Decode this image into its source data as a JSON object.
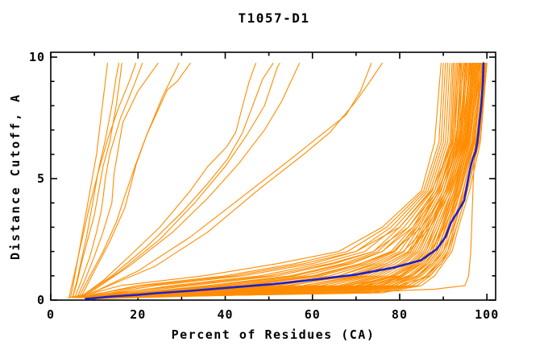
{
  "title": "T1057-D1",
  "colors": {
    "model_line": "#ff8c00",
    "highlight_line": "#2020c8",
    "frame": "#000000",
    "background": "#ffffff"
  },
  "chart_data": {
    "type": "line",
    "title": "T1057-D1",
    "xlabel": "Percent of Residues (CA)",
    "ylabel": "Distance Cutoff, A",
    "xlim": [
      0,
      102
    ],
    "ylim": [
      0,
      10.2
    ],
    "grid": false,
    "legend": "none",
    "x_major_ticks": [
      0,
      20,
      40,
      60,
      80,
      100
    ],
    "x_minor_ticks": [
      10,
      30,
      50,
      70,
      90
    ],
    "y_major_ticks": [
      0,
      5,
      10
    ],
    "y_minor_ticks": [
      1,
      2,
      3,
      4,
      6,
      7,
      8,
      9
    ],
    "highlight_curve": {
      "name": "highlighted-model",
      "points": [
        [
          8,
          0.05
        ],
        [
          14,
          0.15
        ],
        [
          20,
          0.22
        ],
        [
          24,
          0.28
        ],
        [
          32,
          0.38
        ],
        [
          40,
          0.5
        ],
        [
          51,
          0.66
        ],
        [
          60,
          0.83
        ],
        [
          70,
          1.05
        ],
        [
          79,
          1.35
        ],
        [
          85,
          1.65
        ],
        [
          88.5,
          2.1
        ],
        [
          90.5,
          2.6
        ],
        [
          91.8,
          3.2
        ],
        [
          93.5,
          3.7
        ],
        [
          94.8,
          4.1
        ],
        [
          95.4,
          4.7
        ],
        [
          95.8,
          5.1
        ],
        [
          96.4,
          5.6
        ],
        [
          96.8,
          5.85
        ],
        [
          97.4,
          6.1
        ],
        [
          97.8,
          6.5
        ],
        [
          98.1,
          7.0
        ],
        [
          98.4,
          7.5
        ],
        [
          98.7,
          8.0
        ],
        [
          98.9,
          8.5
        ],
        [
          99.1,
          9.0
        ],
        [
          99.2,
          9.75
        ]
      ]
    },
    "orange_outlier_curves": [
      [
        [
          4.5,
          0.1
        ],
        [
          5,
          0.5
        ],
        [
          5.5,
          1
        ],
        [
          6.5,
          2
        ],
        [
          7.5,
          3
        ],
        [
          8.5,
          4
        ],
        [
          9.5,
          5
        ],
        [
          10.5,
          6
        ],
        [
          11.5,
          7.5
        ],
        [
          12.5,
          9
        ],
        [
          13,
          9.75
        ]
      ],
      [
        [
          5,
          0.12
        ],
        [
          6,
          0.8
        ],
        [
          7.2,
          1.8
        ],
        [
          8.2,
          2.6
        ],
        [
          9,
          3.4
        ],
        [
          10,
          4.4
        ],
        [
          11,
          5.4
        ],
        [
          12.5,
          6.6
        ],
        [
          14,
          8
        ],
        [
          15,
          9.2
        ],
        [
          15.6,
          9.75
        ]
      ],
      [
        [
          5,
          0.1
        ],
        [
          6,
          0.7
        ],
        [
          7,
          1.5
        ],
        [
          8.5,
          2.5
        ],
        [
          10,
          3.5
        ],
        [
          11,
          4.5
        ],
        [
          12,
          5.5
        ],
        [
          13.5,
          6.5
        ],
        [
          15,
          8
        ],
        [
          16,
          9.3
        ],
        [
          16.3,
          9.75
        ]
      ],
      [
        [
          4.2,
          0.1
        ],
        [
          5.2,
          0.9
        ],
        [
          6.8,
          2.2
        ],
        [
          8.8,
          3.8
        ],
        [
          10.8,
          5.2
        ],
        [
          13,
          6.6
        ],
        [
          15.5,
          7.9
        ],
        [
          18,
          9
        ],
        [
          19.5,
          9.75
        ]
      ],
      [
        [
          5.5,
          0.1
        ],
        [
          7,
          0.8
        ],
        [
          9,
          1.8
        ],
        [
          10.5,
          2.8
        ],
        [
          11.5,
          3.6
        ],
        [
          12,
          4.2
        ],
        [
          12.5,
          5
        ],
        [
          13.5,
          6
        ],
        [
          16,
          7.5
        ],
        [
          19,
          8.8
        ],
        [
          21,
          9.75
        ]
      ],
      [
        [
          6,
          0.1
        ],
        [
          8,
          0.9
        ],
        [
          10,
          1.8
        ],
        [
          12,
          2.8
        ],
        [
          14,
          4
        ],
        [
          14.5,
          5.2
        ],
        [
          16.5,
          7.3
        ],
        [
          20,
          8.6
        ],
        [
          24.6,
          9.75
        ]
      ],
      [
        [
          6.5,
          0.15
        ],
        [
          9,
          1
        ],
        [
          12,
          2
        ],
        [
          15,
          3.2
        ],
        [
          17,
          4.3
        ],
        [
          19.5,
          5.6
        ],
        [
          22,
          6.8
        ],
        [
          25.7,
          8.4
        ],
        [
          29.4,
          9.75
        ]
      ],
      [
        [
          7,
          0.15
        ],
        [
          10,
          1.2
        ],
        [
          13.5,
          2.4
        ],
        [
          17,
          3.8
        ],
        [
          19.6,
          5.6
        ],
        [
          22,
          6.8
        ],
        [
          26.7,
          8.65
        ],
        [
          29,
          9.0
        ],
        [
          32,
          9.75
        ]
      ],
      [
        [
          7,
          0.15
        ],
        [
          12,
          0.8
        ],
        [
          18,
          1.8
        ],
        [
          25,
          3
        ],
        [
          32,
          4.5
        ],
        [
          36,
          5.5
        ],
        [
          40.3,
          6.3
        ],
        [
          42.4,
          6.9
        ],
        [
          44,
          8
        ],
        [
          45.5,
          9
        ],
        [
          47,
          9.75
        ]
      ],
      [
        [
          7.5,
          0.2
        ],
        [
          14,
          1
        ],
        [
          22,
          2.2
        ],
        [
          30,
          3.6
        ],
        [
          36,
          4.8
        ],
        [
          40.5,
          5.8
        ],
        [
          44,
          6.9
        ],
        [
          48.6,
          9.1
        ],
        [
          51,
          9.75
        ]
      ],
      [
        [
          8,
          0.2
        ],
        [
          16,
          1.2
        ],
        [
          25,
          2.5
        ],
        [
          33,
          4
        ],
        [
          40,
          5.5
        ],
        [
          45,
          6.8
        ],
        [
          49,
          8
        ],
        [
          52,
          9.6
        ],
        [
          52.5,
          9.75
        ]
      ],
      [
        [
          8.5,
          0.25
        ],
        [
          18,
          1.4
        ],
        [
          28,
          2.8
        ],
        [
          36,
          4.2
        ],
        [
          43,
          5.6
        ],
        [
          49,
          7
        ],
        [
          53,
          8.2
        ],
        [
          57,
          9.75
        ]
      ],
      [
        [
          9,
          0.25
        ],
        [
          20,
          1.2
        ],
        [
          32,
          2.6
        ],
        [
          45,
          4.4
        ],
        [
          55,
          5.8
        ],
        [
          62,
          6.8
        ],
        [
          67.6,
          7.6
        ],
        [
          71,
          8.6
        ],
        [
          73.5,
          9.75
        ]
      ],
      [
        [
          9.5,
          0.3
        ],
        [
          24,
          1.4
        ],
        [
          36,
          2.8
        ],
        [
          48,
          4.6
        ],
        [
          58,
          6
        ],
        [
          64,
          6.9
        ],
        [
          69.8,
          8.15
        ],
        [
          72.8,
          8.9
        ],
        [
          76,
          9.75
        ]
      ],
      [
        [
          10,
          0.05
        ],
        [
          30,
          0.15
        ],
        [
          55,
          0.25
        ],
        [
          75,
          0.35
        ],
        [
          88,
          0.45
        ],
        [
          95,
          0.6
        ],
        [
          95.8,
          1.0
        ],
        [
          96.3,
          2.0
        ],
        [
          96.6,
          3.5
        ],
        [
          96.9,
          5.0
        ],
        [
          97.2,
          6.0
        ],
        [
          97.6,
          7.5
        ],
        [
          98,
          8.5
        ],
        [
          98.3,
          9.75
        ]
      ]
    ],
    "bundle": {
      "y_levels": [
        0.1,
        0.3,
        0.6,
        1.0,
        1.5,
        2.0,
        3.0,
        4.5,
        6.5,
        9.75
      ],
      "curves_x": [
        [
          4,
          10,
          16,
          35,
          52,
          66,
          76,
          85,
          88,
          89.5
        ],
        [
          5,
          12,
          20,
          40,
          56,
          68,
          77,
          85.5,
          89,
          90
        ],
        [
          6,
          14,
          24,
          44,
          60,
          70,
          78,
          86,
          89.5,
          90.5
        ],
        [
          7,
          16,
          28,
          48,
          62,
          72,
          79,
          86.5,
          90,
          91
        ],
        [
          5,
          18,
          32,
          52,
          65,
          74,
          80,
          87,
          90.5,
          91.5
        ],
        [
          8,
          20,
          36,
          55,
          67,
          75,
          81,
          87.5,
          91,
          92
        ],
        [
          6,
          22,
          40,
          58,
          69,
          76,
          82,
          88,
          91.5,
          92.3
        ],
        [
          9,
          24,
          44,
          61,
          71,
          78,
          83,
          88,
          91.8,
          92.6
        ],
        [
          7,
          26,
          48,
          64,
          73,
          79,
          83.5,
          88.5,
          92,
          93
        ],
        [
          10,
          28,
          52,
          66,
          74,
          80,
          84,
          89,
          92.3,
          93.3
        ],
        [
          8,
          30,
          55,
          68,
          76,
          81,
          84.5,
          89,
          92.6,
          93.6
        ],
        [
          11,
          32,
          58,
          70,
          77,
          82,
          85,
          89.5,
          93,
          94
        ],
        [
          9,
          34,
          60,
          72,
          78,
          82.5,
          85.5,
          90,
          93.2,
          94.2
        ],
        [
          10,
          36,
          62,
          73,
          79,
          83,
          86,
          90,
          93.5,
          94.5
        ],
        [
          8,
          25,
          45,
          62,
          72,
          78.5,
          84,
          89,
          92.8,
          94.8
        ],
        [
          11,
          38,
          64,
          74,
          80,
          83.5,
          86.5,
          90.5,
          93.8,
          95
        ],
        [
          9,
          40,
          66,
          75,
          80.5,
          84,
          87,
          90.5,
          94,
          95.2
        ],
        [
          10,
          42,
          67,
          76,
          81,
          84.5,
          87,
          91,
          94.2,
          95.5
        ],
        [
          8,
          35,
          58,
          71,
          78,
          82.5,
          86,
          90,
          93.6,
          95.8
        ],
        [
          11,
          44,
          68,
          77,
          82,
          85,
          87.5,
          91,
          94.4,
          96
        ],
        [
          9,
          46,
          70,
          78,
          82.5,
          85.5,
          88,
          91.5,
          94.6,
          96.2
        ],
        [
          10,
          48,
          71,
          78.5,
          83,
          86,
          88,
          91.5,
          94.8,
          96.5
        ],
        [
          8,
          50,
          72,
          79,
          83.5,
          86,
          88.5,
          92,
          95,
          96.8
        ],
        [
          11,
          52,
          73,
          80,
          84,
          86.5,
          89,
          92,
          95.2,
          97
        ],
        [
          9,
          54,
          74,
          80.5,
          84.5,
          87,
          89,
          92.5,
          95.4,
          97.2
        ],
        [
          10,
          56,
          75,
          81,
          85,
          87.5,
          89.5,
          92.5,
          95.6,
          97.5
        ],
        [
          8,
          58,
          76,
          82,
          85.5,
          88,
          90,
          93,
          95.8,
          97.8
        ],
        [
          11,
          60,
          77,
          82.5,
          86,
          88,
          90,
          93,
          96,
          98
        ],
        [
          9,
          62,
          78,
          83,
          86.5,
          88.5,
          90.5,
          93.5,
          96.2,
          98.2
        ],
        [
          10,
          64,
          79,
          84,
          87,
          89,
          91,
          93.5,
          96.5,
          98.5
        ],
        [
          8,
          66,
          80,
          84.5,
          87.5,
          89.5,
          91,
          94,
          96.8,
          98.8
        ],
        [
          11,
          68,
          81,
          85,
          88,
          90,
          91.5,
          94,
          97,
          99
        ],
        [
          9,
          70,
          82,
          86,
          88.5,
          90.5,
          92,
          94.5,
          97.2,
          99.2
        ],
        [
          10,
          72,
          83,
          86.5,
          89,
          91,
          92.5,
          95,
          97.5,
          99.5
        ],
        [
          8,
          74,
          84,
          87,
          89.5,
          91.5,
          93,
          95.5,
          98,
          99.8
        ],
        [
          11,
          76,
          85,
          88,
          90,
          92,
          93.5,
          96,
          98.5,
          100
        ],
        [
          9,
          66,
          82,
          86,
          89,
          91,
          93,
          95.5,
          98.2,
          100
        ],
        [
          10,
          58,
          78,
          84,
          87.5,
          90,
          92.3,
          95,
          97.8,
          99.6
        ],
        [
          8,
          44,
          70,
          79,
          84,
          87,
          90.3,
          93.8,
          96.6,
          98.4
        ],
        [
          11,
          30,
          54,
          69,
          77,
          82,
          87,
          91.7,
          95.3,
          97.3
        ],
        [
          9,
          21,
          42,
          60,
          71,
          78.5,
          85,
          90.7,
          94.5,
          96.7
        ],
        [
          10,
          15,
          30,
          50,
          64,
          74,
          82,
          88.7,
          93.4,
          95.3
        ],
        [
          7,
          12,
          22,
          42,
          58,
          70,
          80,
          87.3,
          92.2,
          93.8
        ],
        [
          6,
          35,
          75,
          83,
          86,
          88,
          90,
          92.8,
          95.5,
          97.6
        ],
        [
          6,
          40,
          68,
          80,
          85,
          87.5,
          89.8,
          92.4,
          95,
          97.1
        ],
        [
          7,
          45,
          72,
          83,
          86.5,
          88.6,
          90.6,
          93.2,
          95.9,
          98.6
        ],
        [
          5,
          20,
          38,
          56,
          68,
          76,
          83,
          89.3,
          93.9,
          96.4
        ],
        [
          6,
          28,
          50,
          66,
          75,
          80.8,
          86.2,
          91.2,
          94.9,
          97.9
        ],
        [
          8,
          55,
          80,
          87,
          89.5,
          91,
          92.5,
          94.6,
          97,
          99.3
        ]
      ]
    }
  }
}
